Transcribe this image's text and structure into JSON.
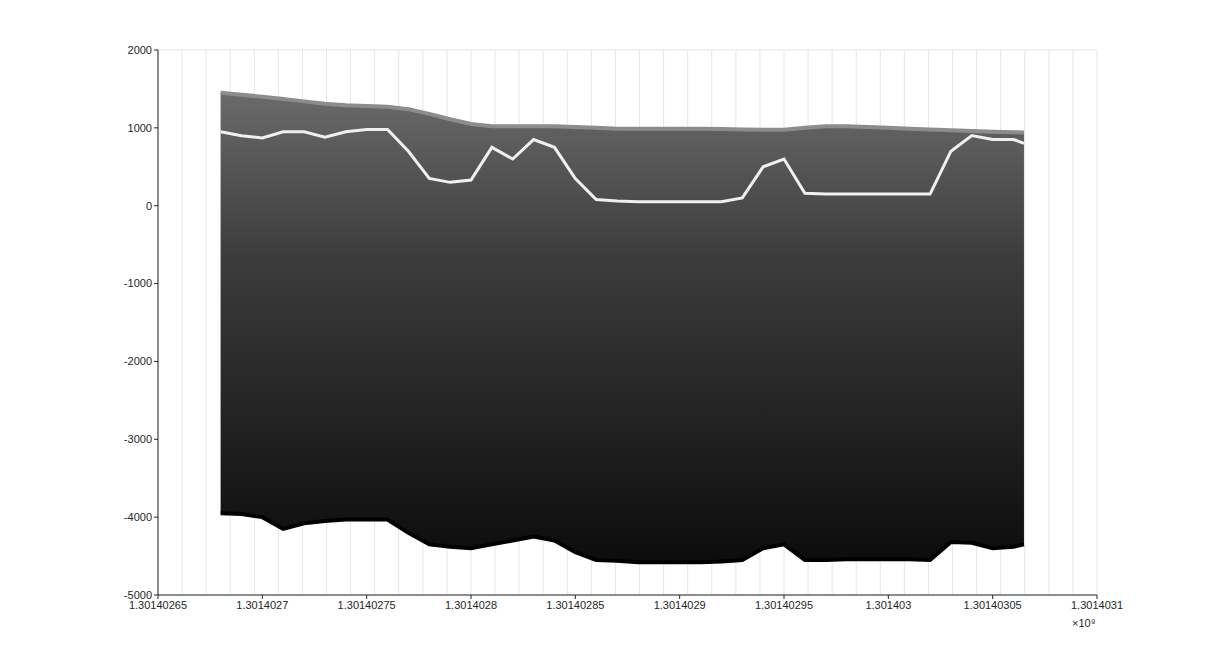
{
  "chart_data": {
    "type": "area",
    "color": "#3c3c3c",
    "grid": true,
    "annotations": [
      "×10⁹"
    ],
    "x": [
      1301402680,
      1301402690,
      1301402700,
      1301402710,
      1301402720,
      1301402730,
      1301402740,
      1301402750,
      1301402760,
      1301402770,
      1301402780,
      1301402790,
      1301402800,
      1301402810,
      1301402820,
      1301402830,
      1301402840,
      1301402850,
      1301402860,
      1301402870,
      1301402880,
      1301402890,
      1301402900,
      1301402910,
      1301402920,
      1301402930,
      1301402940,
      1301402950,
      1301402960,
      1301402970,
      1301402980,
      1301402990,
      1301403000,
      1301403010,
      1301403020,
      1301403030,
      1301403040,
      1301403050,
      1301403060,
      1301403065
    ],
    "series": [
      {
        "color": "#8c8c8c",
        "values": [
          1450,
          1425,
          1400,
          1370,
          1340,
          1310,
          1290,
          1280,
          1270,
          1240,
          1180,
          1110,
          1050,
          1020,
          1020,
          1020,
          1020,
          1010,
          1000,
          990,
          990,
          990,
          990,
          990,
          985,
          980,
          975,
          975,
          1000,
          1020,
          1020,
          1010,
          1000,
          990,
          980,
          970,
          960,
          950,
          945,
          940
        ]
      },
      {
        "color": "#f0f0f0",
        "values": [
          950,
          900,
          870,
          950,
          950,
          880,
          950,
          980,
          980,
          700,
          350,
          300,
          330,
          750,
          600,
          850,
          750,
          350,
          80,
          60,
          50,
          50,
          50,
          50,
          50,
          100,
          500,
          600,
          160,
          150,
          150,
          150,
          150,
          150,
          150,
          700,
          900,
          850,
          850,
          800
        ]
      },
      {
        "color": "#000000",
        "values": [
          -3950,
          -3960,
          -4000,
          -4150,
          -4080,
          -4050,
          -4030,
          -4030,
          -4030,
          -4200,
          -4350,
          -4380,
          -4400,
          -4350,
          -4300,
          -4250,
          -4300,
          -4450,
          -4550,
          -4560,
          -4580,
          -4580,
          -4580,
          -4580,
          -4570,
          -4550,
          -4400,
          -4350,
          -4550,
          -4550,
          -4540,
          -4540,
          -4540,
          -4540,
          -4550,
          -4320,
          -4330,
          -4400,
          -4380,
          -4350
        ]
      }
    ],
    "xlim": [
      1301402650,
      1301403100
    ],
    "xticks": [
      {
        "value": 1301402650,
        "label": "1.30140265"
      },
      {
        "value": 1301402700,
        "label": "1.3014027"
      },
      {
        "value": 1301402750,
        "label": "1.30140275"
      },
      {
        "value": 1301402800,
        "label": "1.3014028"
      },
      {
        "value": 1301402850,
        "label": "1.30140285"
      },
      {
        "value": 1301402900,
        "label": "1.3014029"
      },
      {
        "value": 1301402950,
        "label": "1.30140295"
      },
      {
        "value": 1301403000,
        "label": "1.301403"
      },
      {
        "value": 1301403050,
        "label": "1.30140305"
      },
      {
        "value": 1301403100,
        "label": "1.3014031"
      }
    ],
    "ylim": [
      -5000,
      2000
    ],
    "yticks": [
      -5000,
      -4000,
      -3000,
      -2000,
      -1000,
      0,
      1000,
      2000
    ]
  }
}
